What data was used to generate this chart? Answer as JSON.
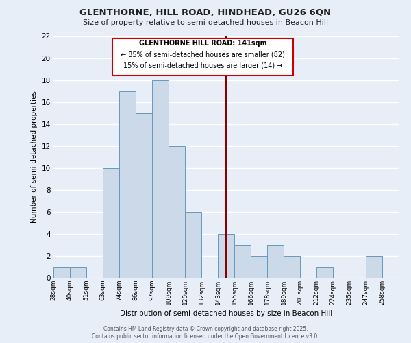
{
  "title": "GLENTHORNE, HILL ROAD, HINDHEAD, GU26 6QN",
  "subtitle": "Size of property relative to semi-detached houses in Beacon Hill",
  "xlabel": "Distribution of semi-detached houses by size in Beacon Hill",
  "ylabel": "Number of semi-detached properties",
  "bin_labels": [
    "28sqm",
    "40sqm",
    "51sqm",
    "63sqm",
    "74sqm",
    "86sqm",
    "97sqm",
    "109sqm",
    "120sqm",
    "132sqm",
    "143sqm",
    "155sqm",
    "166sqm",
    "178sqm",
    "189sqm",
    "201sqm",
    "212sqm",
    "224sqm",
    "235sqm",
    "247sqm",
    "258sqm"
  ],
  "counts": [
    1,
    1,
    0,
    10,
    17,
    15,
    18,
    12,
    6,
    0,
    4,
    3,
    2,
    3,
    2,
    0,
    1,
    0,
    0,
    2,
    0
  ],
  "bar_color": "#ccd9e8",
  "bar_edge_color": "#6699bb",
  "background_color": "#e8eef8",
  "grid_color": "#ffffff",
  "property_bin_index": 10,
  "property_line_color": "#880000",
  "annotation_title": "GLENTHORNE HILL ROAD: 141sqm",
  "annotation_line1": "← 85% of semi-detached houses are smaller (82)",
  "annotation_line2": "15% of semi-detached houses are larger (14) →",
  "annotation_box_color": "#ffffff",
  "annotation_box_edge": "#cc0000",
  "ylim": [
    0,
    22
  ],
  "yticks": [
    0,
    2,
    4,
    6,
    8,
    10,
    12,
    14,
    16,
    18,
    20,
    22
  ],
  "footer1": "Contains HM Land Registry data © Crown copyright and database right 2025.",
  "footer2": "Contains public sector information licensed under the Open Government Licence v3.0."
}
